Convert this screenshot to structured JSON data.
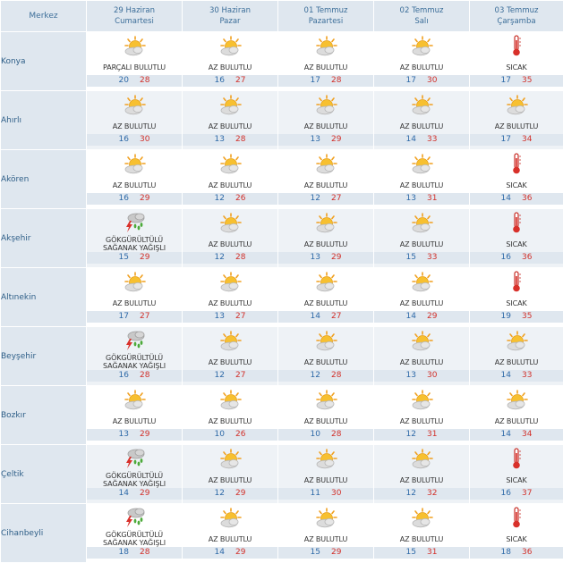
{
  "header": {
    "first": "Merkez",
    "days": [
      {
        "date": "29 Haziran",
        "weekday": "Cumartesi"
      },
      {
        "date": "30 Haziran",
        "weekday": "Pazar"
      },
      {
        "date": "01 Temmuz",
        "weekday": "Pazartesi"
      },
      {
        "date": "02 Temmuz",
        "weekday": "Salı"
      },
      {
        "date": "03 Temmuz",
        "weekday": "Çarşamba"
      }
    ]
  },
  "rows": [
    {
      "city": "Konya",
      "cells": [
        {
          "icon": "partly-cloudy-icon",
          "desc": "PARÇALI BULUTLU",
          "min": "20",
          "max": "28"
        },
        {
          "icon": "partly-cloudy-icon",
          "desc": "AZ BULUTLU",
          "min": "16",
          "max": "27"
        },
        {
          "icon": "partly-cloudy-icon",
          "desc": "AZ BULUTLU",
          "min": "17",
          "max": "28"
        },
        {
          "icon": "partly-cloudy-icon",
          "desc": "AZ BULUTLU",
          "min": "17",
          "max": "30"
        },
        {
          "icon": "thermometer-icon",
          "desc": "SICAK",
          "min": "17",
          "max": "35"
        }
      ]
    },
    {
      "city": "Ahırlı",
      "cells": [
        {
          "icon": "partly-cloudy-icon",
          "desc": "AZ BULUTLU",
          "min": "16",
          "max": "30"
        },
        {
          "icon": "partly-cloudy-icon",
          "desc": "AZ BULUTLU",
          "min": "13",
          "max": "28"
        },
        {
          "icon": "partly-cloudy-icon",
          "desc": "AZ BULUTLU",
          "min": "13",
          "max": "29"
        },
        {
          "icon": "partly-cloudy-icon",
          "desc": "AZ BULUTLU",
          "min": "14",
          "max": "33"
        },
        {
          "icon": "partly-cloudy-icon",
          "desc": "AZ BULUTLU",
          "min": "17",
          "max": "34"
        }
      ]
    },
    {
      "city": "Akören",
      "cells": [
        {
          "icon": "partly-cloudy-icon",
          "desc": "AZ BULUTLU",
          "min": "16",
          "max": "29"
        },
        {
          "icon": "partly-cloudy-icon",
          "desc": "AZ BULUTLU",
          "min": "12",
          "max": "26"
        },
        {
          "icon": "partly-cloudy-icon",
          "desc": "AZ BULUTLU",
          "min": "12",
          "max": "27"
        },
        {
          "icon": "partly-cloudy-icon",
          "desc": "AZ BULUTLU",
          "min": "13",
          "max": "31"
        },
        {
          "icon": "thermometer-icon",
          "desc": "SICAK",
          "min": "14",
          "max": "36"
        }
      ]
    },
    {
      "city": "Akşehir",
      "cells": [
        {
          "icon": "thunderstorm-icon",
          "desc": "GÖKGÜRÜLTÜLÜ SAĞANAK YAĞIŞLI",
          "min": "15",
          "max": "29"
        },
        {
          "icon": "partly-cloudy-icon",
          "desc": "AZ BULUTLU",
          "min": "12",
          "max": "28"
        },
        {
          "icon": "partly-cloudy-icon",
          "desc": "AZ BULUTLU",
          "min": "13",
          "max": "29"
        },
        {
          "icon": "partly-cloudy-icon",
          "desc": "AZ BULUTLU",
          "min": "15",
          "max": "33"
        },
        {
          "icon": "thermometer-icon",
          "desc": "SICAK",
          "min": "16",
          "max": "36"
        }
      ]
    },
    {
      "city": "Altınekin",
      "cells": [
        {
          "icon": "partly-cloudy-icon",
          "desc": "AZ BULUTLU",
          "min": "17",
          "max": "27"
        },
        {
          "icon": "partly-cloudy-icon",
          "desc": "AZ BULUTLU",
          "min": "13",
          "max": "27"
        },
        {
          "icon": "partly-cloudy-icon",
          "desc": "AZ BULUTLU",
          "min": "14",
          "max": "27"
        },
        {
          "icon": "partly-cloudy-icon",
          "desc": "AZ BULUTLU",
          "min": "14",
          "max": "29"
        },
        {
          "icon": "thermometer-icon",
          "desc": "SICAK",
          "min": "19",
          "max": "35"
        }
      ]
    },
    {
      "city": "Beyşehir",
      "cells": [
        {
          "icon": "thunderstorm-icon",
          "desc": "GÖKGÜRÜLTÜLÜ SAĞANAK YAĞIŞLI",
          "min": "16",
          "max": "28"
        },
        {
          "icon": "partly-cloudy-icon",
          "desc": "AZ BULUTLU",
          "min": "12",
          "max": "27"
        },
        {
          "icon": "partly-cloudy-icon",
          "desc": "AZ BULUTLU",
          "min": "12",
          "max": "28"
        },
        {
          "icon": "partly-cloudy-icon",
          "desc": "AZ BULUTLU",
          "min": "13",
          "max": "30"
        },
        {
          "icon": "partly-cloudy-icon",
          "desc": "AZ BULUTLU",
          "min": "14",
          "max": "33"
        }
      ]
    },
    {
      "city": "Bozkır",
      "cells": [
        {
          "icon": "partly-cloudy-icon",
          "desc": "AZ BULUTLU",
          "min": "13",
          "max": "29"
        },
        {
          "icon": "partly-cloudy-icon",
          "desc": "AZ BULUTLU",
          "min": "10",
          "max": "26"
        },
        {
          "icon": "partly-cloudy-icon",
          "desc": "AZ BULUTLU",
          "min": "10",
          "max": "28"
        },
        {
          "icon": "partly-cloudy-icon",
          "desc": "AZ BULUTLU",
          "min": "12",
          "max": "31"
        },
        {
          "icon": "partly-cloudy-icon",
          "desc": "AZ BULUTLU",
          "min": "14",
          "max": "34"
        }
      ]
    },
    {
      "city": "Çeltik",
      "cells": [
        {
          "icon": "thunderstorm-icon",
          "desc": "GÖKGÜRÜLTÜLÜ SAĞANAK YAĞIŞLI",
          "min": "14",
          "max": "29"
        },
        {
          "icon": "partly-cloudy-icon",
          "desc": "AZ BULUTLU",
          "min": "12",
          "max": "29"
        },
        {
          "icon": "partly-cloudy-icon",
          "desc": "AZ BULUTLU",
          "min": "11",
          "max": "30"
        },
        {
          "icon": "partly-cloudy-icon",
          "desc": "AZ BULUTLU",
          "min": "12",
          "max": "32"
        },
        {
          "icon": "thermometer-icon",
          "desc": "SICAK",
          "min": "16",
          "max": "37"
        }
      ]
    },
    {
      "city": "Cihanbeyli",
      "cells": [
        {
          "icon": "thunderstorm-icon",
          "desc": "GÖKGÜRÜLTÜLÜ SAĞANAK YAĞIŞLI",
          "min": "18",
          "max": "28"
        },
        {
          "icon": "partly-cloudy-icon",
          "desc": "AZ BULUTLU",
          "min": "14",
          "max": "29"
        },
        {
          "icon": "partly-cloudy-icon",
          "desc": "AZ BULUTLU",
          "min": "15",
          "max": "29"
        },
        {
          "icon": "partly-cloudy-icon",
          "desc": "AZ BULUTLU",
          "min": "15",
          "max": "31"
        },
        {
          "icon": "thermometer-icon",
          "desc": "SICAK",
          "min": "18",
          "max": "36"
        }
      ]
    }
  ],
  "colors": {
    "min_temp": "#2f6aa8",
    "max_temp": "#d2302a",
    "header_bg": "#dfe7ef",
    "header_text": "#3c6e99"
  }
}
